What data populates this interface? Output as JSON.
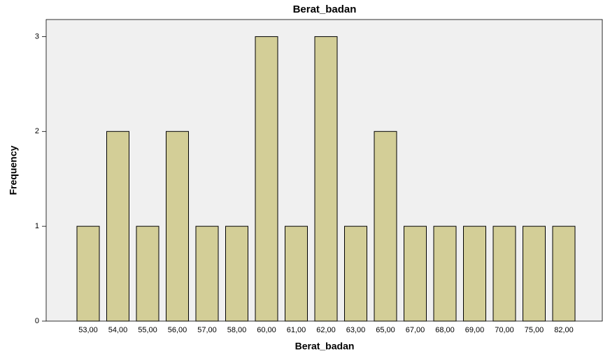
{
  "chart_data": {
    "type": "bar",
    "title": "Berat_badan",
    "x_label": "Berat_badan",
    "y_label": "Frequency",
    "categories": [
      "53,00",
      "54,00",
      "55,00",
      "56,00",
      "57,00",
      "58,00",
      "60,00",
      "61,00",
      "62,00",
      "63,00",
      "65,00",
      "67,00",
      "68,00",
      "69,00",
      "70,00",
      "75,00",
      "82,00"
    ],
    "values": [
      1,
      2,
      1,
      2,
      1,
      1,
      3,
      1,
      3,
      1,
      2,
      1,
      1,
      1,
      1,
      1,
      1
    ],
    "color": "#d3ce97",
    "ylim": [
      0,
      3.18
    ],
    "yticks": [
      0,
      1,
      2,
      3
    ],
    "grid": false
  }
}
